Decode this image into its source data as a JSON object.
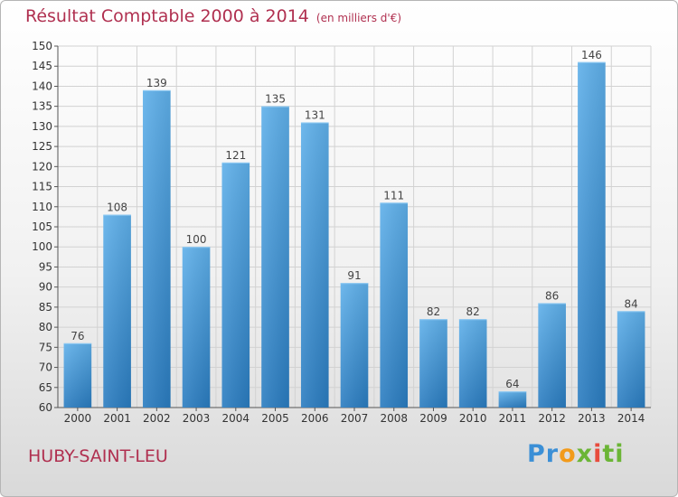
{
  "title": "Résultat Comptable 2000 à 2014",
  "unit": "(en milliers d'€)",
  "place": "HUBY-SAINT-LEU",
  "logo": {
    "p1": "Pr",
    "p2": "o",
    "p3": "x",
    "p4": "i",
    "p5": "ti"
  },
  "chart_data": {
    "type": "bar",
    "categories": [
      "2000",
      "2001",
      "2002",
      "2003",
      "2004",
      "2005",
      "2006",
      "2007",
      "2008",
      "2009",
      "2010",
      "2011",
      "2012",
      "2013",
      "2014"
    ],
    "values": [
      76,
      108,
      139,
      100,
      121,
      135,
      131,
      91,
      111,
      82,
      82,
      64,
      86,
      146,
      84
    ],
    "ylim": [
      60,
      150
    ],
    "yticks": [
      60,
      65,
      70,
      75,
      80,
      85,
      90,
      95,
      100,
      105,
      110,
      115,
      120,
      125,
      130,
      135,
      140,
      145,
      150
    ],
    "grid": true,
    "colors": {
      "bar_top": "#5fb0ea",
      "bar_bottom": "#2a7cc0",
      "title": "#b03050"
    }
  }
}
